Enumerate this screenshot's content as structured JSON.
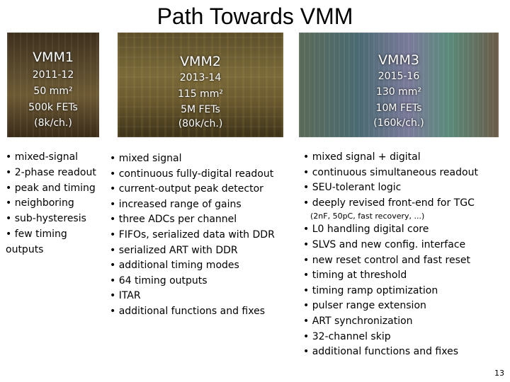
{
  "title": "Path Towards VMM",
  "chips": [
    {
      "name": "VMM1",
      "years": "2011-12",
      "area": "50 mm²",
      "fets": "500k FETs",
      "rate": "(8k/ch.)"
    },
    {
      "name": "VMM2",
      "years": "2013-14",
      "area": "115 mm²",
      "fets": "5M FETs",
      "rate": "(80k/ch.)"
    },
    {
      "name": "VMM3",
      "years": "2015-16",
      "area": "130 mm²",
      "fets": "10M FETs",
      "rate": "(160k/ch.)"
    }
  ],
  "vmm1_features": [
    "• mixed-signal",
    "• 2-phase readout",
    "• peak and timing",
    "• neighboring",
    "• sub-hysteresis",
    "• few timing",
    "outputs"
  ],
  "vmm2_features": [
    "• mixed signal",
    "• continuous fully-digital readout",
    "• current-output peak detector",
    "• increased range of gains",
    "• three ADCs per channel",
    "• FIFOs, serialized data with DDR",
    "• serialized ART with DDR",
    "• additional timing modes",
    "• 64 timing outputs",
    "• ITAR",
    "• additional functions and fixes"
  ],
  "vmm3_features": [
    "• mixed signal + digital",
    "• continuous simultaneous readout",
    "• SEU-tolerant logic",
    "• deeply revised front-end for TGC",
    "(2nF, 50pC, fast recovery, ...)",
    "• L0 handling digital core",
    "• SLVS and new config. interface",
    "• new reset control and fast reset",
    "• timing at threshold",
    "• timing ramp optimization",
    "• pulser range extension",
    "• ART synchronization",
    "• 32-channel skip",
    "• additional functions and fixes"
  ],
  "page_number": "13"
}
